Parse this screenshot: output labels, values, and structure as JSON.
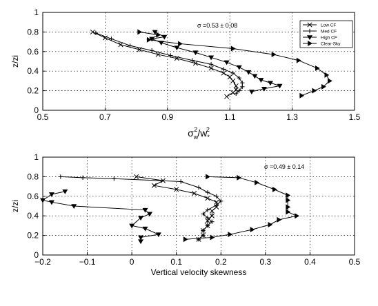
{
  "chart_data": [
    {
      "type": "line",
      "xlabel": "σw²/w*²",
      "xlabel_parts": {
        "base": "σ",
        "base_sub": "w",
        "sup1": "2",
        "sep": "/w",
        "sub2": "*",
        "sup2": "2"
      },
      "ylabel": "z/zi",
      "annotation": "σ =0.53 ± 0.08",
      "xlim": [
        0.5,
        1.5
      ],
      "ylim": [
        0,
        1
      ],
      "xticks": [
        0.5,
        0.7,
        0.9,
        1.1,
        1.3,
        1.5
      ],
      "xtick_labels": [
        "0.5",
        "0.7",
        "0.9",
        "1.1",
        "1.3",
        "1.5"
      ],
      "yticks": [
        0,
        0.2,
        0.4,
        0.6,
        0.8,
        1
      ],
      "ytick_labels": [
        "0",
        "0.2",
        "0.4",
        "0.6",
        "0.8",
        "1"
      ],
      "grid": true,
      "legend_position": "top-right",
      "series": [
        {
          "name": "Low CF",
          "marker": "x",
          "points": [
            [
              0.66,
              0.8
            ],
            [
              0.7,
              0.74
            ],
            [
              0.75,
              0.67
            ],
            [
              0.81,
              0.62
            ],
            [
              0.87,
              0.57
            ],
            [
              0.93,
              0.53
            ],
            [
              0.99,
              0.48
            ],
            [
              1.04,
              0.43
            ],
            [
              1.08,
              0.38
            ],
            [
              1.1,
              0.34
            ],
            [
              1.11,
              0.3
            ],
            [
              1.12,
              0.25
            ],
            [
              1.12,
              0.21
            ],
            [
              1.11,
              0.18
            ],
            [
              1.09,
              0.14
            ]
          ]
        },
        {
          "name": "Med CF",
          "marker": "plus",
          "points": [
            [
              0.67,
              0.79
            ],
            [
              0.72,
              0.73
            ],
            [
              0.78,
              0.66
            ],
            [
              0.85,
              0.61
            ],
            [
              0.91,
              0.56
            ],
            [
              0.98,
              0.51
            ],
            [
              1.04,
              0.47
            ],
            [
              1.08,
              0.42
            ],
            [
              1.11,
              0.38
            ],
            [
              1.13,
              0.33
            ],
            [
              1.14,
              0.28
            ],
            [
              1.14,
              0.24
            ],
            [
              1.13,
              0.2
            ],
            [
              1.12,
              0.17
            ]
          ]
        },
        {
          "name": "High CF",
          "marker": "triangle-down",
          "points": [
            [
              0.86,
              0.8
            ],
            [
              0.89,
              0.75
            ],
            [
              0.85,
              0.73
            ],
            [
              0.88,
              0.69
            ],
            [
              0.93,
              0.64
            ],
            [
              0.99,
              0.59
            ],
            [
              1.04,
              0.54
            ],
            [
              1.09,
              0.49
            ],
            [
              1.13,
              0.44
            ],
            [
              1.16,
              0.39
            ],
            [
              1.18,
              0.35
            ],
            [
              1.2,
              0.31
            ],
            [
              1.23,
              0.28
            ],
            [
              1.26,
              0.25
            ],
            [
              1.21,
              0.22
            ],
            [
              1.17,
              0.19
            ]
          ]
        },
        {
          "name": "Clear-Sky",
          "marker": "triangle-right",
          "points": [
            [
              0.81,
              0.8
            ],
            [
              0.87,
              0.77
            ],
            [
              0.84,
              0.72
            ],
            [
              0.94,
              0.68
            ],
            [
              1.11,
              0.63
            ],
            [
              1.24,
              0.57
            ],
            [
              1.32,
              0.51
            ],
            [
              1.38,
              0.43
            ],
            [
              1.41,
              0.36
            ],
            [
              1.42,
              0.3
            ],
            [
              1.4,
              0.24
            ],
            [
              1.37,
              0.2
            ],
            [
              1.33,
              0.15
            ]
          ]
        }
      ]
    },
    {
      "type": "line",
      "xlabel": "Vertical velocity skewness",
      "ylabel": "z/zi",
      "annotation": "σ =0.49 ± 0.14",
      "xlim": [
        -0.2,
        0.5
      ],
      "ylim": [
        0,
        1
      ],
      "xticks": [
        -0.2,
        -0.1,
        0,
        0.1,
        0.2,
        0.3,
        0.4,
        0.5
      ],
      "xtick_labels": [
        "−0.2",
        "−0.1",
        "0",
        "0.1",
        "0.2",
        "0.3",
        "0.4",
        "0.5"
      ],
      "yticks": [
        0,
        0.2,
        0.4,
        0.6,
        0.8,
        1
      ],
      "ytick_labels": [
        "0",
        "0.2",
        "0.4",
        "0.6",
        "0.8",
        "1"
      ],
      "grid": true,
      "series": [
        {
          "name": "Low CF",
          "marker": "x",
          "points": [
            [
              0.01,
              0.8
            ],
            [
              0.07,
              0.76
            ],
            [
              0.05,
              0.71
            ],
            [
              0.1,
              0.67
            ],
            [
              0.14,
              0.63
            ],
            [
              0.17,
              0.58
            ],
            [
              0.19,
              0.54
            ],
            [
              0.19,
              0.49
            ],
            [
              0.18,
              0.45
            ],
            [
              0.18,
              0.4
            ],
            [
              0.17,
              0.35
            ],
            [
              0.17,
              0.3
            ],
            [
              0.16,
              0.25
            ],
            [
              0.16,
              0.2
            ],
            [
              0.15,
              0.16
            ]
          ]
        },
        {
          "name": "Med CF",
          "marker": "plus",
          "points": [
            [
              -0.16,
              0.8
            ],
            [
              -0.11,
              0.79
            ],
            [
              -0.04,
              0.78
            ],
            [
              0.11,
              0.75
            ],
            [
              0.15,
              0.69
            ],
            [
              0.17,
              0.64
            ],
            [
              0.19,
              0.6
            ],
            [
              0.2,
              0.55
            ],
            [
              0.19,
              0.51
            ],
            [
              0.17,
              0.46
            ],
            [
              0.16,
              0.42
            ],
            [
              0.17,
              0.38
            ],
            [
              0.18,
              0.34
            ],
            [
              0.17,
              0.3
            ],
            [
              0.16,
              0.25
            ],
            [
              0.16,
              0.2
            ],
            [
              0.15,
              0.16
            ]
          ]
        },
        {
          "name": "High CF",
          "marker": "triangle-down",
          "points": [
            [
              -0.15,
              0.65
            ],
            [
              -0.18,
              0.62
            ],
            [
              -0.2,
              0.56
            ],
            [
              -0.18,
              0.54
            ],
            [
              -0.13,
              0.5
            ],
            [
              0.03,
              0.46
            ],
            [
              0.04,
              0.42
            ],
            [
              0.02,
              0.38
            ],
            [
              0.0,
              0.3
            ],
            [
              0.03,
              0.27
            ],
            [
              0.06,
              0.21
            ],
            [
              0.02,
              0.18
            ],
            [
              0.02,
              0.14
            ]
          ]
        },
        {
          "name": "Clear-Sky",
          "marker": "triangle-right",
          "points": [
            [
              0.17,
              0.8
            ],
            [
              0.24,
              0.79
            ],
            [
              0.28,
              0.74
            ],
            [
              0.32,
              0.67
            ],
            [
              0.35,
              0.61
            ],
            [
              0.35,
              0.56
            ],
            [
              0.35,
              0.49
            ],
            [
              0.35,
              0.44
            ],
            [
              0.37,
              0.4
            ],
            [
              0.33,
              0.36
            ],
            [
              0.31,
              0.31
            ],
            [
              0.27,
              0.26
            ],
            [
              0.22,
              0.21
            ],
            [
              0.18,
              0.18
            ],
            [
              0.12,
              0.16
            ]
          ]
        }
      ]
    }
  ]
}
